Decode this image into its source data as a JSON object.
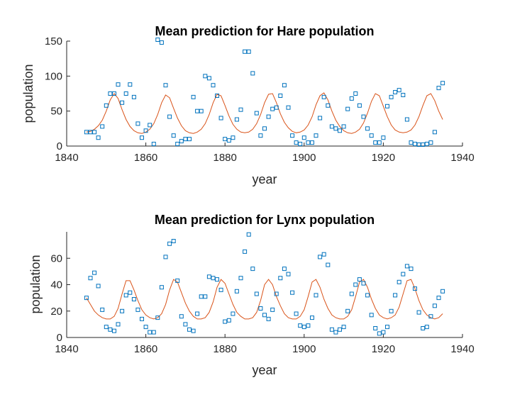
{
  "chart_data": [
    {
      "type": "scatter",
      "title": "Mean prediction for Hare population",
      "xlabel": "year",
      "ylabel": "population",
      "xlim": [
        1840,
        1940
      ],
      "ylim": [
        0,
        150
      ],
      "xticks": [
        1840,
        1860,
        1880,
        1900,
        1920,
        1940
      ],
      "yticks": [
        0,
        50,
        100,
        150
      ],
      "grid": false,
      "legend": "none",
      "series": [
        {
          "kind": "markers",
          "color": "#0072BD",
          "marker": "square",
          "x": [
            1845,
            1846,
            1847,
            1848,
            1849,
            1850,
            1851,
            1852,
            1853,
            1854,
            1855,
            1856,
            1857,
            1858,
            1859,
            1860,
            1861,
            1862,
            1863,
            1864,
            1865,
            1866,
            1867,
            1868,
            1869,
            1870,
            1871,
            1872,
            1873,
            1874,
            1875,
            1876,
            1877,
            1878,
            1879,
            1880,
            1881,
            1882,
            1883,
            1884,
            1885,
            1886,
            1887,
            1888,
            1889,
            1890,
            1891,
            1892,
            1893,
            1894,
            1895,
            1896,
            1897,
            1898,
            1899,
            1900,
            1901,
            1902,
            1903,
            1904,
            1905,
            1906,
            1907,
            1908,
            1909,
            1910,
            1911,
            1912,
            1913,
            1914,
            1915,
            1916,
            1917,
            1918,
            1919,
            1920,
            1921,
            1922,
            1923,
            1924,
            1925,
            1926,
            1927,
            1928,
            1929,
            1930,
            1931,
            1932,
            1933,
            1934,
            1935
          ],
          "y": [
            20,
            20,
            20,
            12,
            28,
            58,
            75,
            75,
            88,
            62,
            75,
            88,
            70,
            32,
            12,
            22,
            30,
            3,
            152,
            148,
            87,
            42,
            15,
            3,
            7,
            10,
            10,
            70,
            50,
            50,
            100,
            97,
            87,
            72,
            40,
            10,
            8,
            12,
            38,
            52,
            135,
            135,
            104,
            47,
            15,
            25,
            42,
            53,
            55,
            72,
            87,
            55,
            15,
            5,
            3,
            12,
            5,
            5,
            15,
            40,
            70,
            58,
            28,
            25,
            22,
            28,
            53,
            68,
            75,
            58,
            42,
            25,
            15,
            5,
            5,
            12,
            57,
            70,
            77,
            80,
            73,
            38,
            5,
            3,
            2,
            2,
            3,
            5,
            20,
            83,
            90
          ]
        },
        {
          "kind": "line",
          "color": "#D95319",
          "x": [
            1845,
            1846,
            1847,
            1848,
            1849,
            1850,
            1851,
            1852,
            1853,
            1854,
            1855,
            1856,
            1857,
            1858,
            1859,
            1860,
            1861,
            1862,
            1863,
            1864,
            1865,
            1866,
            1867,
            1868,
            1869,
            1870,
            1871,
            1872,
            1873,
            1874,
            1875,
            1876,
            1877,
            1878,
            1879,
            1880,
            1881,
            1882,
            1883,
            1884,
            1885,
            1886,
            1887,
            1888,
            1889,
            1890,
            1891,
            1892,
            1893,
            1894,
            1895,
            1896,
            1897,
            1898,
            1899,
            1900,
            1901,
            1902,
            1903,
            1904,
            1905,
            1906,
            1907,
            1908,
            1909,
            1910,
            1911,
            1912,
            1913,
            1914,
            1915,
            1916,
            1917,
            1918,
            1919,
            1920,
            1921,
            1922,
            1923,
            1924,
            1925,
            1926,
            1927,
            1928,
            1929,
            1930,
            1931,
            1932,
            1933,
            1934,
            1935
          ],
          "y": [
            20,
            21,
            24,
            29,
            37,
            50,
            66,
            75,
            68,
            52,
            38,
            28,
            22,
            19,
            18,
            20,
            24,
            32,
            45,
            62,
            73,
            69,
            54,
            40,
            29,
            22,
            19,
            18,
            20,
            24,
            32,
            45,
            62,
            74,
            72,
            58,
            43,
            31,
            24,
            20,
            19,
            20,
            24,
            32,
            45,
            62,
            74,
            75,
            62,
            46,
            34,
            26,
            21,
            19,
            20,
            23,
            30,
            42,
            59,
            72,
            76,
            66,
            50,
            37,
            28,
            22,
            19,
            18,
            20,
            24,
            33,
            47,
            64,
            75,
            72,
            57,
            42,
            30,
            23,
            20,
            19,
            20,
            23,
            30,
            42,
            58,
            72,
            75,
            65,
            50,
            38
          ]
        }
      ]
    },
    {
      "type": "scatter",
      "title": "Mean prediction for Lynx population",
      "xlabel": "year",
      "ylabel": "population",
      "xlim": [
        1840,
        1940
      ],
      "ylim": [
        0,
        80
      ],
      "xticks": [
        1840,
        1860,
        1880,
        1900,
        1920,
        1940
      ],
      "yticks": [
        0,
        20,
        40,
        60
      ],
      "grid": false,
      "legend": "none",
      "series": [
        {
          "kind": "markers",
          "color": "#0072BD",
          "marker": "square",
          "x": [
            1845,
            1846,
            1847,
            1848,
            1849,
            1850,
            1851,
            1852,
            1853,
            1854,
            1855,
            1856,
            1857,
            1858,
            1859,
            1860,
            1861,
            1862,
            1863,
            1864,
            1865,
            1866,
            1867,
            1868,
            1869,
            1870,
            1871,
            1872,
            1873,
            1874,
            1875,
            1876,
            1877,
            1878,
            1879,
            1880,
            1881,
            1882,
            1883,
            1884,
            1885,
            1886,
            1887,
            1888,
            1889,
            1890,
            1891,
            1892,
            1893,
            1894,
            1895,
            1896,
            1897,
            1898,
            1899,
            1900,
            1901,
            1902,
            1903,
            1904,
            1905,
            1906,
            1907,
            1908,
            1909,
            1910,
            1911,
            1912,
            1913,
            1914,
            1915,
            1916,
            1917,
            1918,
            1919,
            1920,
            1921,
            1922,
            1923,
            1924,
            1925,
            1926,
            1927,
            1928,
            1929,
            1930,
            1931,
            1932,
            1933,
            1934,
            1935
          ],
          "y": [
            30,
            45,
            49,
            39,
            21,
            8,
            6,
            5,
            10,
            20,
            32,
            34,
            29,
            21,
            14,
            8,
            4,
            4,
            15,
            38,
            61,
            71,
            73,
            43,
            16,
            10,
            6,
            5,
            18,
            31,
            31,
            46,
            45,
            44,
            36,
            12,
            13,
            18,
            35,
            45,
            65,
            78,
            52,
            33,
            22,
            17,
            14,
            21,
            33,
            45,
            52,
            48,
            34,
            18,
            9,
            8,
            9,
            15,
            32,
            61,
            63,
            55,
            6,
            4,
            6,
            8,
            20,
            33,
            40,
            44,
            41,
            32,
            17,
            7,
            3,
            4,
            8,
            20,
            32,
            42,
            48,
            54,
            52,
            37,
            19,
            7,
            8,
            16,
            24,
            30,
            35
          ]
        },
        {
          "kind": "line",
          "color": "#D95319",
          "x": [
            1845,
            1846,
            1847,
            1848,
            1849,
            1850,
            1851,
            1852,
            1853,
            1854,
            1855,
            1856,
            1857,
            1858,
            1859,
            1860,
            1861,
            1862,
            1863,
            1864,
            1865,
            1866,
            1867,
            1868,
            1869,
            1870,
            1871,
            1872,
            1873,
            1874,
            1875,
            1876,
            1877,
            1878,
            1879,
            1880,
            1881,
            1882,
            1883,
            1884,
            1885,
            1886,
            1887,
            1888,
            1889,
            1890,
            1891,
            1892,
            1893,
            1894,
            1895,
            1896,
            1897,
            1898,
            1899,
            1900,
            1901,
            1902,
            1903,
            1904,
            1905,
            1906,
            1907,
            1908,
            1909,
            1910,
            1911,
            1912,
            1913,
            1914,
            1915,
            1916,
            1917,
            1918,
            1919,
            1920,
            1921,
            1922,
            1923,
            1924,
            1925,
            1926,
            1927,
            1928,
            1929,
            1930,
            1931,
            1932,
            1933,
            1934,
            1935
          ],
          "y": [
            30,
            25,
            20,
            17,
            15,
            14,
            14,
            16,
            22,
            33,
            43,
            43,
            36,
            28,
            21,
            17,
            15,
            14,
            15,
            18,
            25,
            36,
            44,
            42,
            34,
            26,
            20,
            16,
            14,
            14,
            15,
            19,
            27,
            38,
            44,
            41,
            33,
            25,
            19,
            16,
            14,
            14,
            15,
            19,
            28,
            40,
            44,
            40,
            31,
            24,
            18,
            15,
            14,
            14,
            16,
            21,
            31,
            42,
            44,
            38,
            29,
            22,
            17,
            15,
            14,
            14,
            16,
            21,
            31,
            42,
            44,
            38,
            29,
            22,
            17,
            15,
            14,
            15,
            17,
            23,
            33,
            43,
            44,
            37,
            28,
            21,
            17,
            15,
            14,
            15,
            18
          ]
        }
      ]
    }
  ]
}
